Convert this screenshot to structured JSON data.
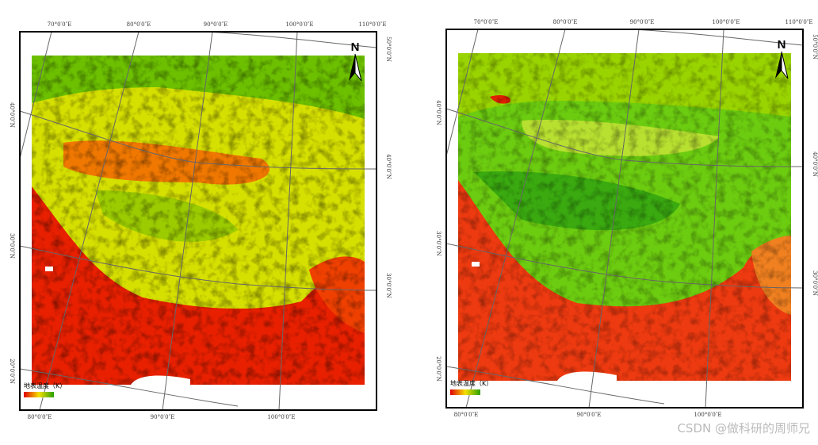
{
  "maps": [
    {
      "top_labels": [
        "70°0′0″E",
        "80°0′0″E",
        "90°0′0″E",
        "100°0′0″E",
        "110°0′0″E"
      ],
      "left_labels": [
        "40°0′0″N",
        "30°0′0″N",
        "20°0′0″N"
      ],
      "right_labels": [
        "50°0′0″N",
        "40°0′0″N",
        "30°0′0″N"
      ],
      "bottom_labels": [
        "80°0′0″E",
        "90°0′0″E",
        "100°0′0″E"
      ],
      "north": "N",
      "legend_title": "地表温度（K）"
    },
    {
      "top_labels": [
        "70°0′0″E",
        "80°0′0″E",
        "90°0′0″E",
        "100°0′0″E",
        "110°0′0″E"
      ],
      "left_labels": [
        "40°0′0″N",
        "30°0′0″N",
        "20°0′0″N"
      ],
      "right_labels": [
        "50°0′0″N",
        "40°0′0″N",
        "30°0′0″N"
      ],
      "bottom_labels": [
        "80°0′0″E",
        "90°0′0″E",
        "100°0′0″E"
      ],
      "north": "N",
      "legend_title": "地表温度（K）"
    }
  ],
  "watermark": "CSDN @做科研的周师兄"
}
